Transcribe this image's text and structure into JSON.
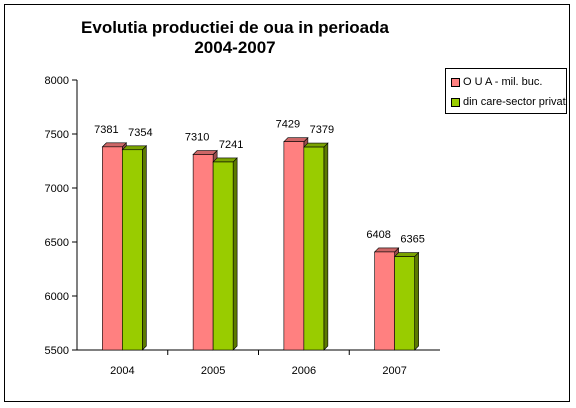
{
  "chart_data": {
    "type": "bar",
    "title": "Evolutia productiei de oua in perioada 2004-2007",
    "categories": [
      "2004",
      "2005",
      "2006",
      "2007"
    ],
    "series": [
      {
        "name": "O U A - mil. buc.",
        "values": [
          7381,
          7310,
          7429,
          6408
        ],
        "color": "#ff8080"
      },
      {
        "name": "din care-sector privat",
        "values": [
          7354,
          7241,
          7379,
          6365
        ],
        "color": "#99cc00"
      }
    ],
    "xlabel": "",
    "ylabel": "",
    "ylim": [
      5500,
      8000
    ],
    "yticks": [
      5500,
      6000,
      6500,
      7000,
      7500,
      8000
    ],
    "grid": false,
    "legend_position": "right",
    "data_labels": true
  }
}
